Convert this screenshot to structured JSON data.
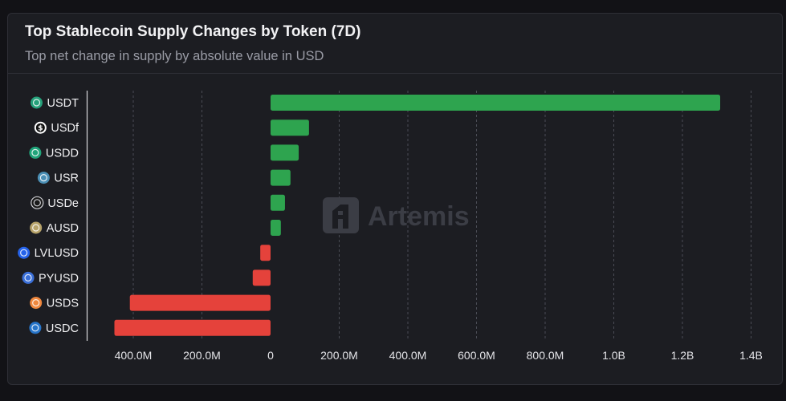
{
  "header": {
    "title": "Top Stablecoin Supply Changes by Token (7D)",
    "subtitle": "Top net change in supply by absolute value in USD"
  },
  "watermark": {
    "text": "Artemis",
    "icon": "artemis-logo-icon"
  },
  "colors": {
    "positive": "#2ea44f",
    "negative": "#e5423b",
    "grid": "#4a4c55",
    "axis": "#d8d8dc",
    "watermark": "#3b3d45"
  },
  "chart_data": {
    "type": "bar",
    "orientation": "horizontal",
    "categories": [
      "USDT",
      "USDf",
      "USDD",
      "USR",
      "USDe",
      "AUSD",
      "LVLUSD",
      "PYUSD",
      "USDS",
      "USDC"
    ],
    "category_icons": [
      "tether-icon",
      "usdf-icon",
      "usdd-icon",
      "usr-icon",
      "usde-icon",
      "ausd-icon",
      "lvlusd-icon",
      "pyusd-icon",
      "usds-icon",
      "usdc-icon"
    ],
    "icon_colors": [
      "#26a17b",
      "#ffffff",
      "#20a47a",
      "#4b8fb5",
      "#1a1a1a",
      "#b7a36a",
      "#2563eb",
      "#3a6fd8",
      "#f0883e",
      "#2775ca"
    ],
    "values": [
      1310000000,
      112000000,
      82000000,
      58000000,
      42000000,
      30000000,
      -30000000,
      -52000000,
      -410000000,
      -455000000
    ],
    "xlim": [
      -530000000,
      1400000000
    ],
    "xticks": [
      -400000000,
      -200000000,
      0,
      200000000,
      400000000,
      600000000,
      800000000,
      1000000000,
      1200000000,
      1400000000
    ],
    "xtick_labels": [
      "400.0M",
      "200.0M",
      "0",
      "200.0M",
      "400.0M",
      "600.0M",
      "800.0M",
      "1.0B",
      "1.2B",
      "1.4B"
    ],
    "grid": true,
    "legend": "none"
  }
}
